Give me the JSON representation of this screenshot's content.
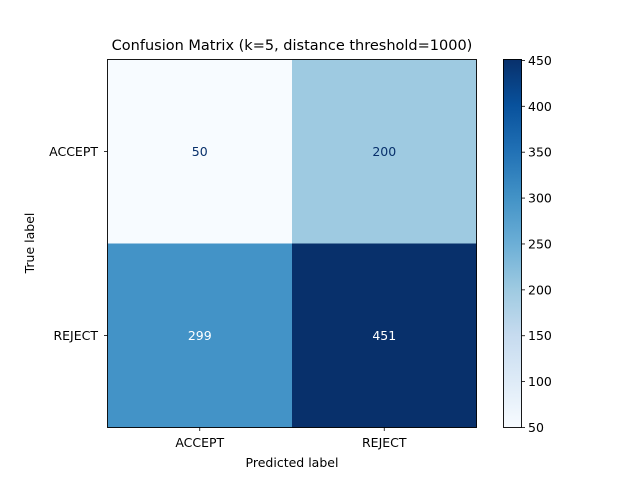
{
  "chart_data": {
    "type": "heatmap",
    "title": "Confusion Matrix (k=5, distance threshold=1000)",
    "xlabel": "Predicted label",
    "ylabel": "True label",
    "x_categories": [
      "ACCEPT",
      "REJECT"
    ],
    "y_categories": [
      "ACCEPT",
      "REJECT"
    ],
    "values": [
      [
        50,
        200
      ],
      [
        299,
        451
      ]
    ],
    "colormap": "Blues",
    "colorbar": {
      "range": [
        50,
        451
      ],
      "ticks": [
        50,
        100,
        150,
        200,
        250,
        300,
        350,
        400,
        450
      ]
    },
    "grid": false
  }
}
